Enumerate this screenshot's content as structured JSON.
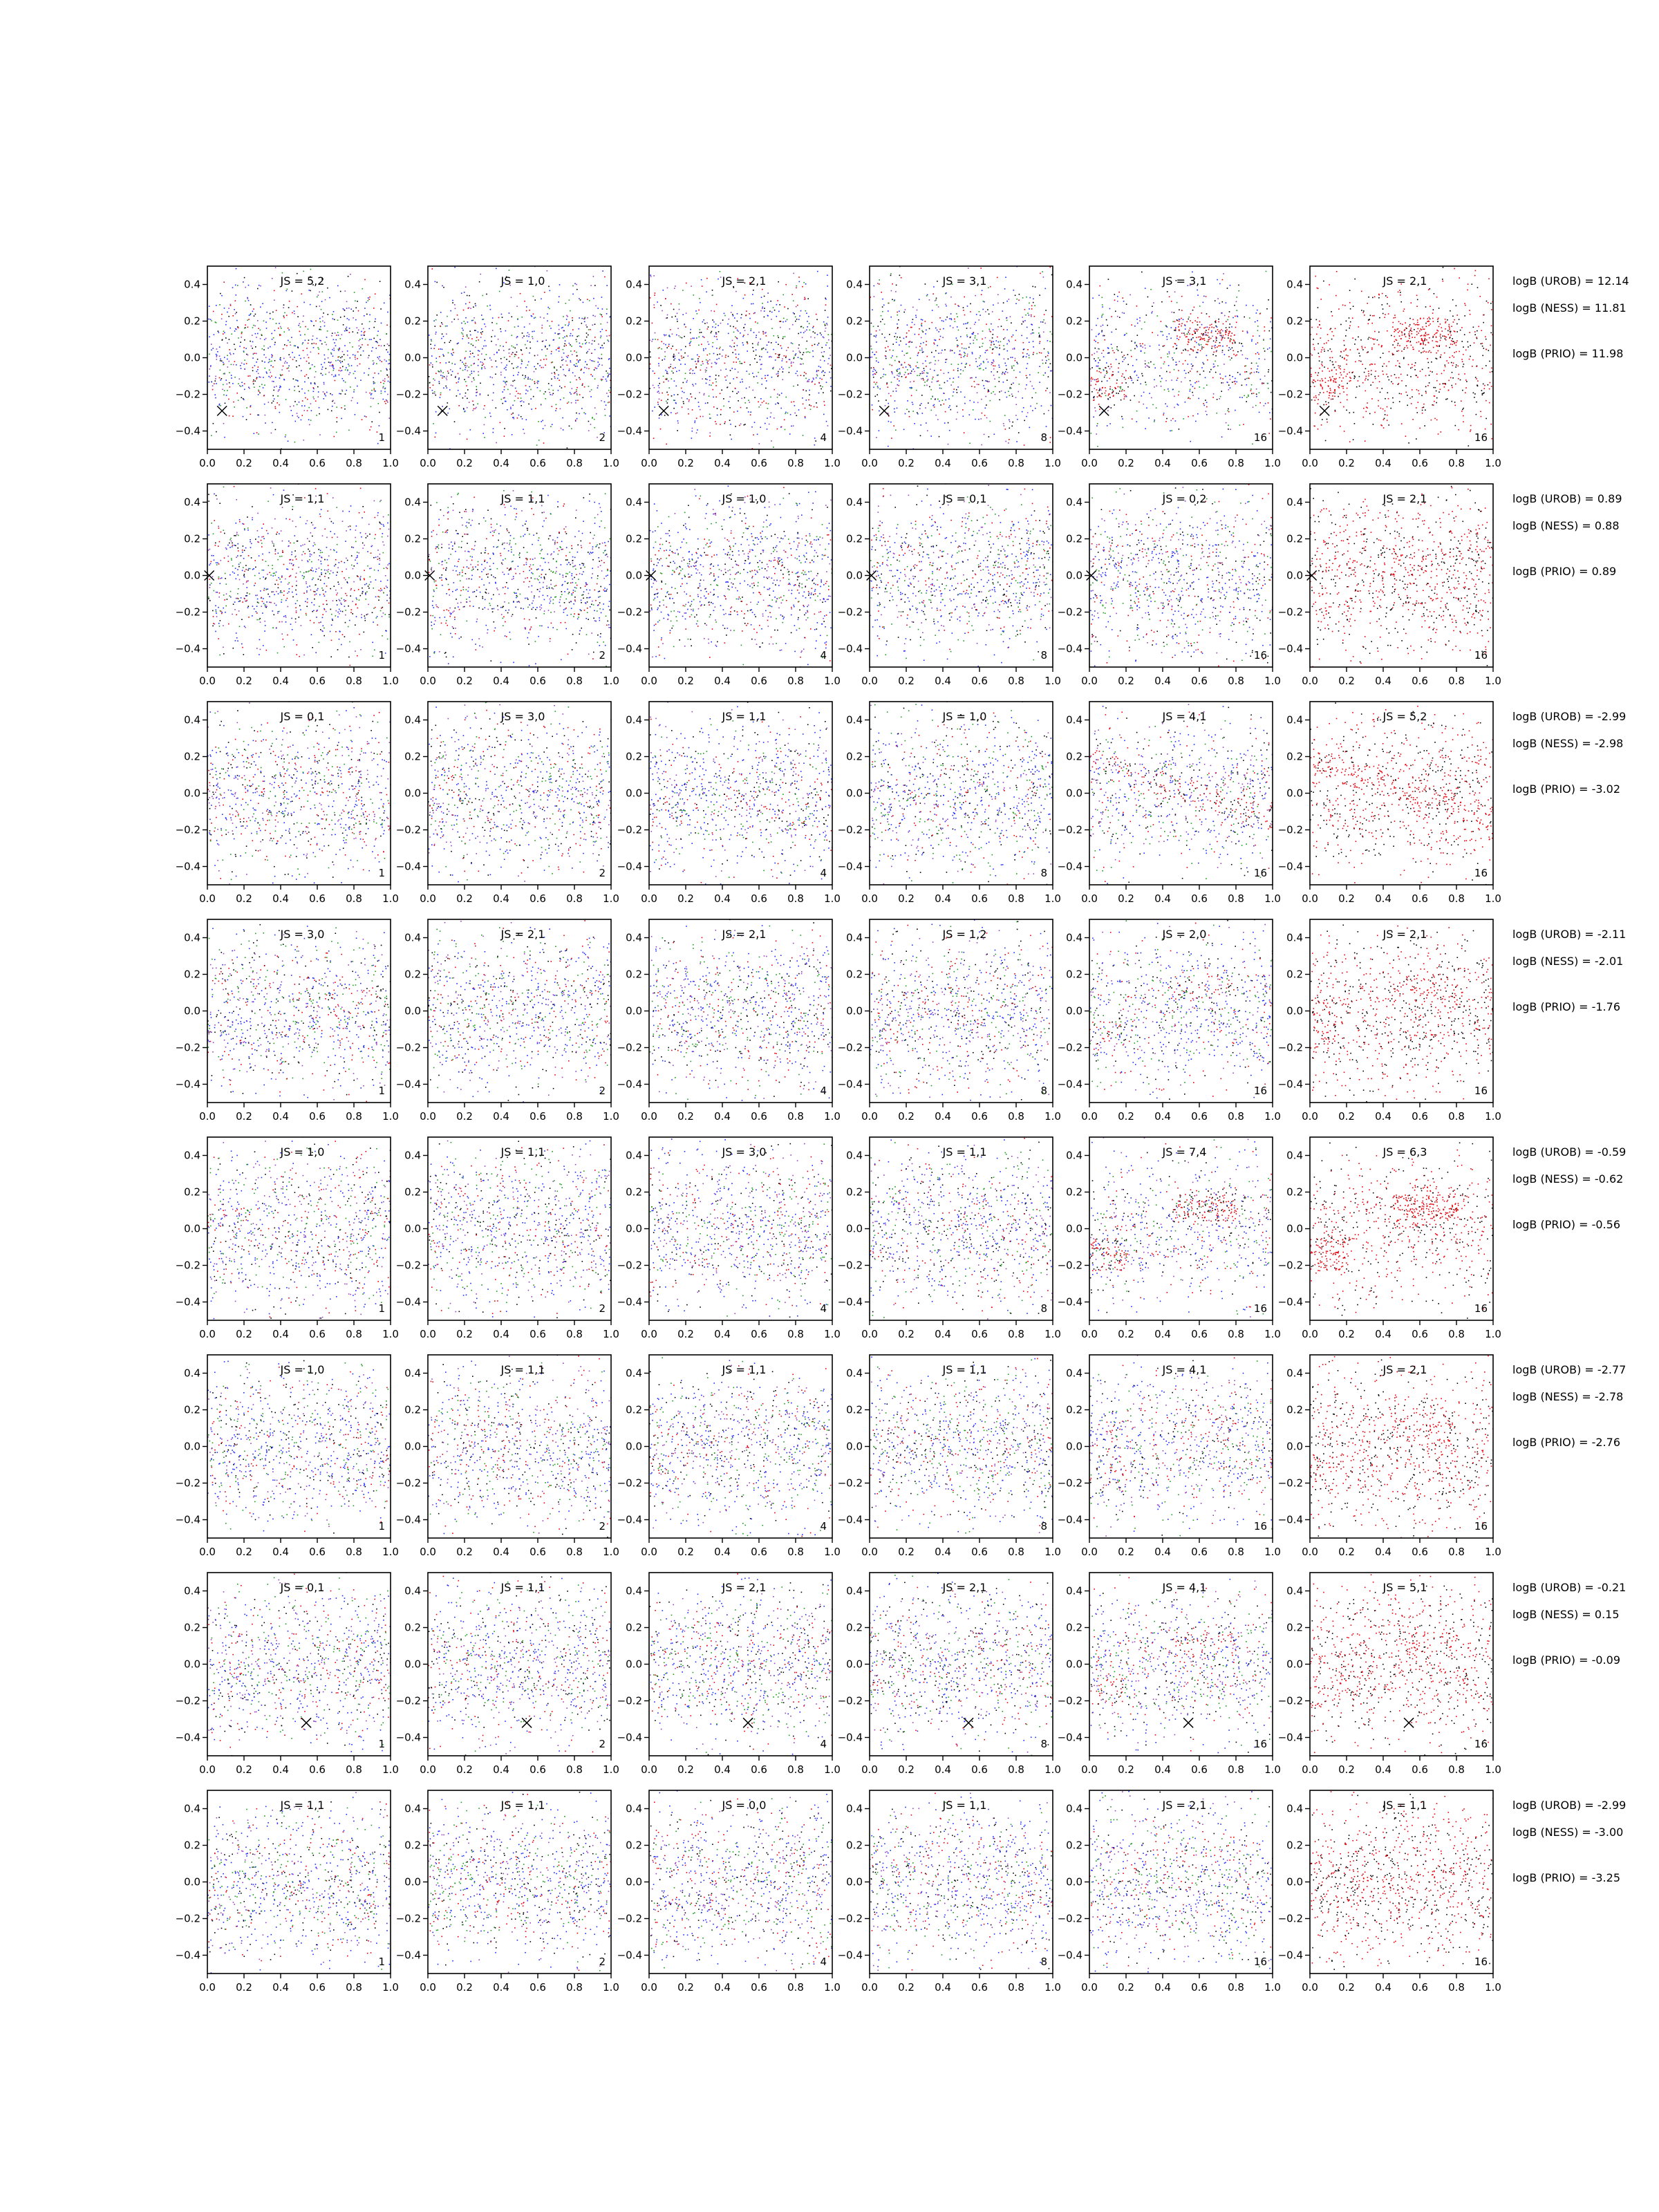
{
  "chart_data": {
    "type": "scatter",
    "layout": "8 rows x 6 columns grid of scatter panels",
    "xlim": [
      0.0,
      1.0
    ],
    "ylim": [
      -0.5,
      0.5
    ],
    "x_ticks": [
      0.0,
      0.2,
      0.4,
      0.6,
      0.8,
      1.0
    ],
    "x_tick_labels": [
      "0.0",
      "0.2",
      "0.4",
      "0.6",
      "0.8",
      "1.0"
    ],
    "y_ticks": [
      0.4,
      0.2,
      0.0,
      -0.2,
      -0.4
    ],
    "y_tick_labels": [
      "0.4",
      "0.2",
      "0.0",
      "−0.2",
      "−0.4"
    ],
    "grid": false,
    "point_colors": {
      "black": "#000000",
      "red": "#e8000b",
      "green": "#1a9c1a",
      "blue": "#1f2bff",
      "purple": "#9a3fc4"
    },
    "columns": [
      {
        "corner_label": "1",
        "colors": "mixed"
      },
      {
        "corner_label": "2",
        "colors": "mixed"
      },
      {
        "corner_label": "4",
        "colors": "mixed"
      },
      {
        "corner_label": "8",
        "colors": "mixed"
      },
      {
        "corner_label": "16",
        "colors": "mixed"
      },
      {
        "corner_label": "16",
        "colors": "red-black"
      }
    ],
    "rows": [
      {
        "js": [
          "JS = 5,2",
          "JS = 1,0",
          "JS = 2,1",
          "JS = 3,1",
          "JS = 3,1",
          "JS = 2,1"
        ],
        "marker": {
          "x": 0.08,
          "y": -0.29
        },
        "cluster": "strong",
        "logB": [
          "logB (UROB) = 12.14",
          "logB (NESS) = 11.81",
          "logB (PRIO) = 11.98"
        ]
      },
      {
        "js": [
          "JS = 1,1",
          "JS = 1,1",
          "JS = 1,0",
          "JS = 0,1",
          "JS = 0,2",
          "JS = 2,1"
        ],
        "marker": {
          "x": 0.01,
          "y": 0.0
        },
        "cluster": "none",
        "logB": [
          "logB (UROB) = 0.89",
          "logB (NESS) = 0.88",
          "logB (PRIO) = 0.89"
        ]
      },
      {
        "js": [
          "JS = 0,1",
          "JS = 3,0",
          "JS = 1,1",
          "JS = 1,0",
          "JS = 4,1",
          "JS = 5,2"
        ],
        "marker": null,
        "cluster": "diagonal",
        "logB": [
          "logB (UROB) = -2.99",
          "logB (NESS) = -2.98",
          "logB (PRIO) = -3.02"
        ]
      },
      {
        "js": [
          "JS = 3,0",
          "JS = 2,1",
          "JS = 2,1",
          "JS = 1,2",
          "JS = 2,0",
          "JS = 2,1"
        ],
        "marker": null,
        "cluster": "weak",
        "logB": [
          "logB (UROB) = -2.11",
          "logB (NESS) = -2.01",
          "logB (PRIO) = -1.76"
        ]
      },
      {
        "js": [
          "JS = 1,0",
          "JS = 1,1",
          "JS = 3,0",
          "JS = 1,1",
          "JS = 7,4",
          "JS = 6,3"
        ],
        "marker": null,
        "cluster": "strong",
        "logB": [
          "logB (UROB) = -0.59",
          "logB (NESS) = -0.62",
          "logB (PRIO) = -0.56"
        ]
      },
      {
        "js": [
          "JS = 1,0",
          "JS = 1,1",
          "JS = 1,1",
          "JS = 1,1",
          "JS = 4,1",
          "JS = 2,1"
        ],
        "marker": null,
        "cluster": "weak",
        "logB": [
          "logB (UROB) = -2.77",
          "logB (NESS) = -2.78",
          "logB (PRIO) = -2.76"
        ]
      },
      {
        "js": [
          "JS = 0,1",
          "JS = 1,1",
          "JS = 2,1",
          "JS = 2,1",
          "JS = 4,1",
          "JS = 5,1"
        ],
        "marker": {
          "x": 0.54,
          "y": -0.32
        },
        "cluster": "weak",
        "logB": [
          "logB (UROB) = -0.21",
          "logB (NESS) = 0.15",
          "logB (PRIO) = -0.09"
        ]
      },
      {
        "js": [
          "JS = 1,1",
          "JS = 1,1",
          "JS = 0,0",
          "JS = 1,1",
          "JS = 2,1",
          "JS = 1,1"
        ],
        "marker": null,
        "cluster": "none",
        "logB": [
          "logB (UROB) = -2.99",
          "logB (NESS) = -3.00",
          "logB (PRIO) = -3.25"
        ]
      }
    ]
  }
}
